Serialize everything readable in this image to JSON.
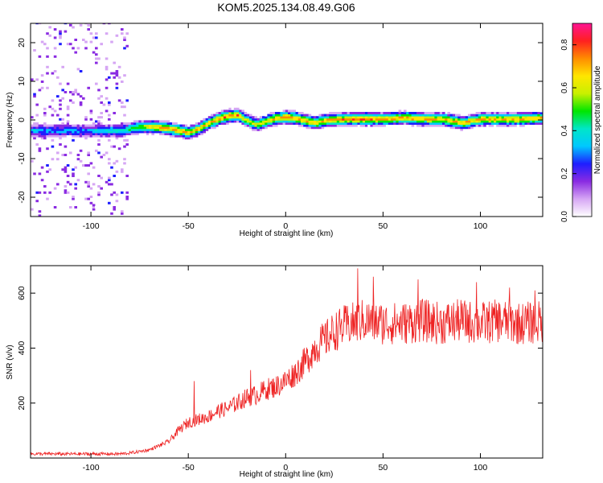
{
  "figure": {
    "title": "KOM5.2025.134.08.49.G06"
  },
  "chart_data": [
    {
      "type": "heatmap",
      "name": "spectrogram",
      "xlabel": "Height of straight line (km)",
      "ylabel": "Frequency (Hz)",
      "xlim": [
        -131,
        132
      ],
      "ylim": [
        -25,
        25
      ],
      "xticks": [
        -100,
        -50,
        0,
        50,
        100
      ],
      "yticks": [
        -20,
        -10,
        0,
        10,
        20
      ],
      "colorbar": {
        "label": "Normalized spectral amplitude",
        "range": [
          0,
          0.9
        ],
        "ticks": [
          "0.0",
          "0.2",
          "0.4",
          "0.6",
          "0.8"
        ],
        "colormap": [
          "#ffffff",
          "#d6a6f4",
          "#8a2be2",
          "#1e1eff",
          "#00c8ff",
          "#00e6c8",
          "#00e600",
          "#c8f000",
          "#ffe600",
          "#ff8c00",
          "#ff2020",
          "#ff1493"
        ]
      },
      "ridge": {
        "x": [
          -131,
          -100,
          -85,
          -80,
          -75,
          -70,
          -65,
          -60,
          -55,
          -50,
          -45,
          -40,
          -35,
          -30,
          -25,
          -20,
          -15,
          -10,
          -5,
          0,
          5,
          10,
          15,
          20,
          30,
          40,
          50,
          60,
          70,
          80,
          85,
          90,
          100,
          110,
          120,
          132
        ],
        "y": [
          -3,
          -3,
          -3,
          -2.5,
          -2,
          -2,
          -2.2,
          -2.5,
          -3,
          -3.5,
          -2.5,
          -1,
          0,
          0.8,
          1,
          -0.5,
          -1.5,
          -0.5,
          0.2,
          0.5,
          0.2,
          -0.5,
          -1,
          -0.3,
          0,
          0,
          0,
          0.3,
          0,
          0,
          -0.5,
          -1,
          0,
          0,
          0,
          0.3
        ],
        "amp": [
          0.35,
          0.35,
          0.45,
          0.5,
          0.6,
          0.7,
          0.75,
          0.75,
          0.75,
          0.72,
          0.7,
          0.72,
          0.75,
          0.8,
          0.75,
          0.65,
          0.65,
          0.7,
          0.75,
          0.8,
          0.75,
          0.72,
          0.72,
          0.75,
          0.78,
          0.78,
          0.75,
          0.75,
          0.75,
          0.72,
          0.75,
          0.72,
          0.75,
          0.75,
          0.75,
          0.72
        ]
      },
      "noise_region_x": [
        -131,
        -82
      ]
    },
    {
      "type": "line",
      "name": "snr",
      "xlabel": "Height of straight line (km)",
      "ylabel": "SNR (v/v)",
      "xlim": [
        -131,
        132
      ],
      "ylim": [
        0,
        700
      ],
      "xticks": [
        -100,
        -50,
        0,
        50,
        100
      ],
      "yticks": [
        200,
        400,
        600
      ],
      "color": "#ee2222",
      "trend": {
        "x": [
          -131,
          -100,
          -85,
          -80,
          -70,
          -60,
          -55,
          -50,
          -45,
          -40,
          -35,
          -30,
          -25,
          -20,
          -15,
          -10,
          -5,
          0,
          5,
          10,
          15,
          20,
          25,
          30,
          40,
          50,
          60,
          70,
          80,
          90,
          100,
          110,
          120,
          132
        ],
        "y": [
          15,
          15,
          15,
          18,
          30,
          60,
          100,
          130,
          140,
          150,
          170,
          180,
          200,
          220,
          230,
          250,
          260,
          280,
          310,
          350,
          400,
          430,
          460,
          480,
          500,
          490,
          490,
          500,
          490,
          500,
          490,
          500,
          490,
          495
        ]
      },
      "spikes": [
        {
          "x": -47,
          "y": 280
        },
        {
          "x": -18,
          "y": 320
        },
        {
          "x": 37,
          "y": 690
        },
        {
          "x": 45,
          "y": 660
        },
        {
          "x": 68,
          "y": 650
        },
        {
          "x": 98,
          "y": 640
        },
        {
          "x": 115,
          "y": 620
        },
        {
          "x": 128,
          "y": 610
        }
      ]
    }
  ]
}
